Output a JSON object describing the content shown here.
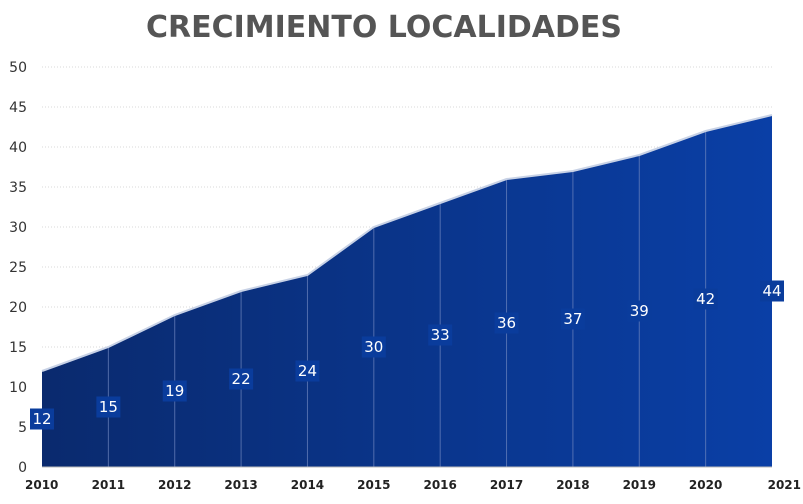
{
  "chart_data": {
    "type": "area",
    "title": "CRECIMIENTO LOCALIDADES",
    "xlabel": "",
    "ylabel": "",
    "categories": [
      "2010",
      "2011",
      "2012",
      "2013",
      "2014",
      "2015",
      "2016",
      "2017",
      "2018",
      "2019",
      "2020",
      "2021"
    ],
    "values": [
      12,
      15,
      19,
      22,
      24,
      30,
      33,
      36,
      37,
      39,
      42,
      44
    ],
    "data_labels": [
      "12",
      "15",
      "19",
      "22",
      "24",
      "30",
      "33",
      "36",
      "37",
      "39",
      "42",
      "44"
    ],
    "ylim": [
      0,
      50
    ],
    "yticks": [
      "0",
      "5",
      "10",
      "15",
      "20",
      "25",
      "30",
      "35",
      "40",
      "45",
      "50"
    ],
    "grid": true,
    "legend": "none",
    "colors": {
      "area_start": "#0a2a6e",
      "area_end": "#0a3fa6",
      "line": "#c8d2e6",
      "label_box": "#0a3c9c",
      "title": "#555555"
    }
  }
}
